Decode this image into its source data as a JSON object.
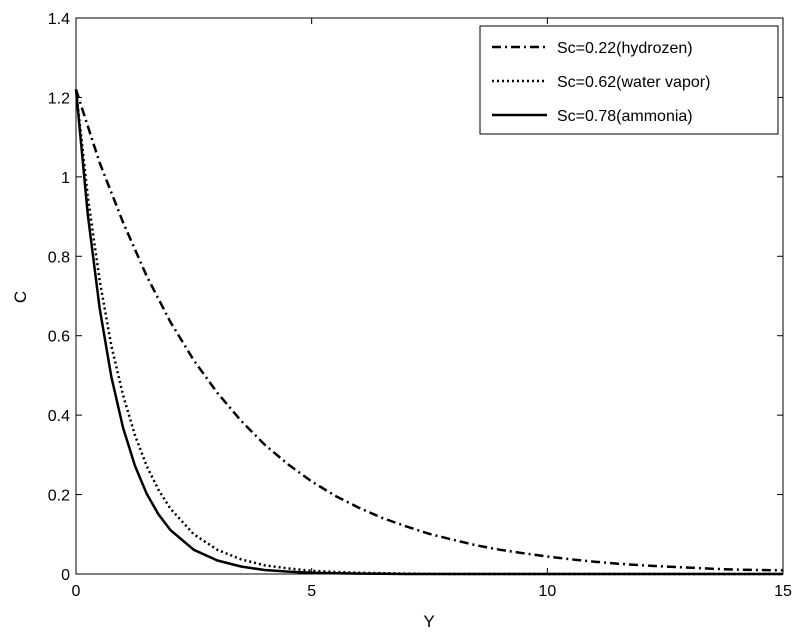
{
  "chart_data": {
    "type": "line",
    "title": "",
    "xlabel": "Y",
    "ylabel": "C",
    "xlim": [
      0,
      15
    ],
    "ylim": [
      0,
      1.4
    ],
    "xticks": [
      0,
      5,
      10,
      15
    ],
    "xtick_labels": [
      "0",
      "5",
      "10",
      "15"
    ],
    "yticks": [
      0,
      0.2,
      0.4,
      0.6,
      0.8,
      1,
      1.2,
      1.4
    ],
    "ytick_labels": [
      "0",
      "0.2",
      "0.4",
      "0.6",
      "0.8",
      "1",
      "1.2",
      "1.4"
    ],
    "grid": false,
    "legend_position": "top-right",
    "series": [
      {
        "name": "Sc=0.22(hydrozen)",
        "line_style": "dashdot",
        "color": "#000000",
        "x": [
          0,
          0.5,
          1,
          1.5,
          2,
          2.5,
          3,
          3.5,
          4,
          4.5,
          5,
          5.5,
          6,
          6.5,
          7,
          7.5,
          8,
          8.5,
          9,
          9.5,
          10,
          10.5,
          11,
          11.5,
          12,
          12.5,
          13,
          13.5,
          14,
          14.5,
          15
        ],
        "y": [
          1.22,
          1.036,
          0.885,
          0.75,
          0.635,
          0.538,
          0.456,
          0.386,
          0.326,
          0.276,
          0.233,
          0.197,
          0.167,
          0.141,
          0.12,
          0.101,
          0.086,
          0.072,
          0.061,
          0.052,
          0.044,
          0.037,
          0.031,
          0.026,
          0.022,
          0.019,
          0.016,
          0.013,
          0.011,
          0.01,
          0.009
        ]
      },
      {
        "name": "Sc=0.62(water vapor)",
        "line_style": "dotted",
        "color": "#000000",
        "x": [
          0,
          0.25,
          0.5,
          0.75,
          1,
          1.25,
          1.5,
          1.75,
          2,
          2.5,
          3,
          3.5,
          4,
          4.5,
          5,
          5.5,
          6,
          7,
          8,
          9,
          10,
          12,
          15
        ],
        "y": [
          1.22,
          0.95,
          0.74,
          0.575,
          0.45,
          0.35,
          0.272,
          0.212,
          0.165,
          0.1,
          0.061,
          0.037,
          0.022,
          0.014,
          0.008,
          0.005,
          0.003,
          0.001,
          0,
          0,
          0,
          0,
          0
        ]
      },
      {
        "name": "Sc=0.78(ammonia)",
        "line_style": "solid",
        "color": "#000000",
        "x": [
          0,
          0.25,
          0.5,
          0.75,
          1,
          1.25,
          1.5,
          1.75,
          2,
          2.5,
          3,
          3.5,
          4,
          4.5,
          5,
          5.5,
          6,
          7,
          8,
          9,
          10,
          12,
          15
        ],
        "y": [
          1.22,
          0.905,
          0.67,
          0.497,
          0.368,
          0.273,
          0.202,
          0.15,
          0.111,
          0.061,
          0.034,
          0.019,
          0.01,
          0.006,
          0.003,
          0.002,
          0.001,
          0,
          0,
          0,
          0,
          0,
          0
        ]
      }
    ]
  }
}
